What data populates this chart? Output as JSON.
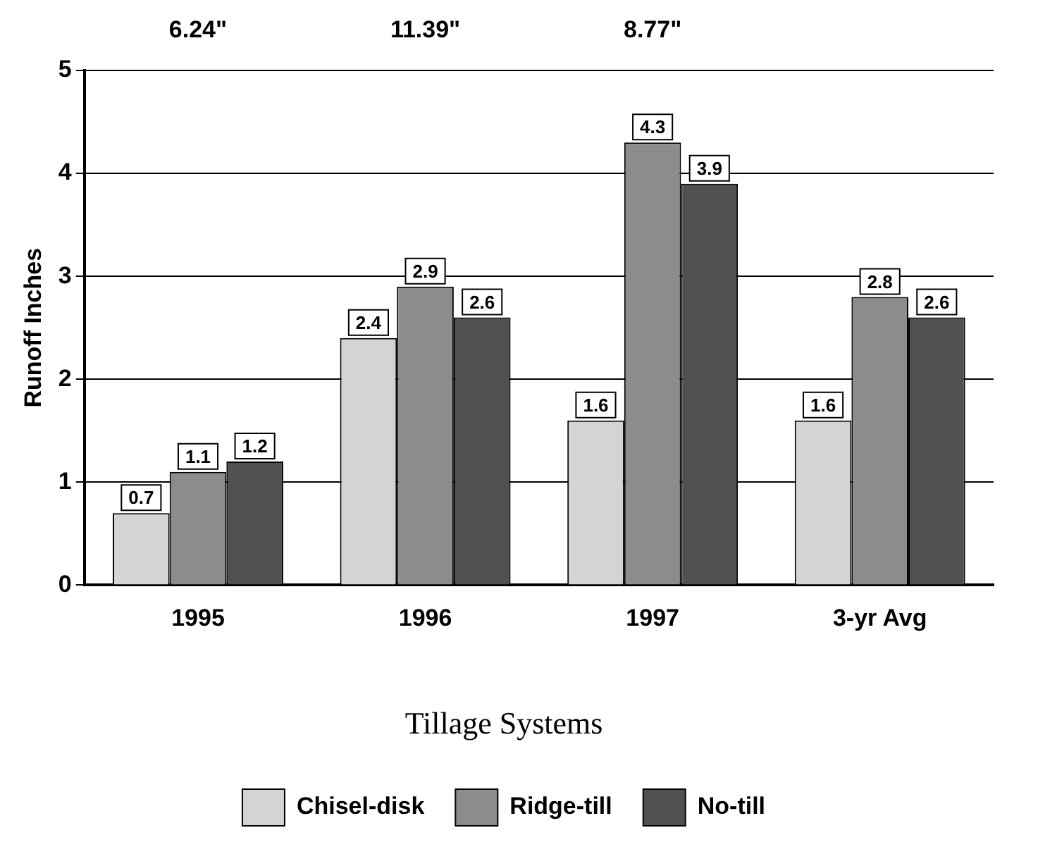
{
  "chart_data": {
    "type": "bar",
    "ylabel": "Runoff Inches",
    "legend_title": "Tillage Systems",
    "categories": [
      "1995",
      "1996",
      "1997",
      "3-yr Avg"
    ],
    "series": [
      {
        "name": "Chisel-disk",
        "color": "#d4d4d4",
        "values": [
          0.7,
          2.4,
          1.6,
          1.6
        ]
      },
      {
        "name": "Ridge-till",
        "color": "#8c8c8c",
        "values": [
          1.1,
          2.9,
          4.3,
          2.8
        ]
      },
      {
        "name": "No-till",
        "color": "#505050",
        "values": [
          1.2,
          2.6,
          3.9,
          2.6
        ]
      }
    ],
    "ylim": [
      0,
      5
    ],
    "yticks": [
      0,
      1,
      2,
      3,
      4,
      5
    ],
    "grid": "y",
    "legend": "bottom",
    "data_labels": true,
    "annotations": [
      "6.24\"",
      "11.39\"",
      "8.77\""
    ]
  }
}
